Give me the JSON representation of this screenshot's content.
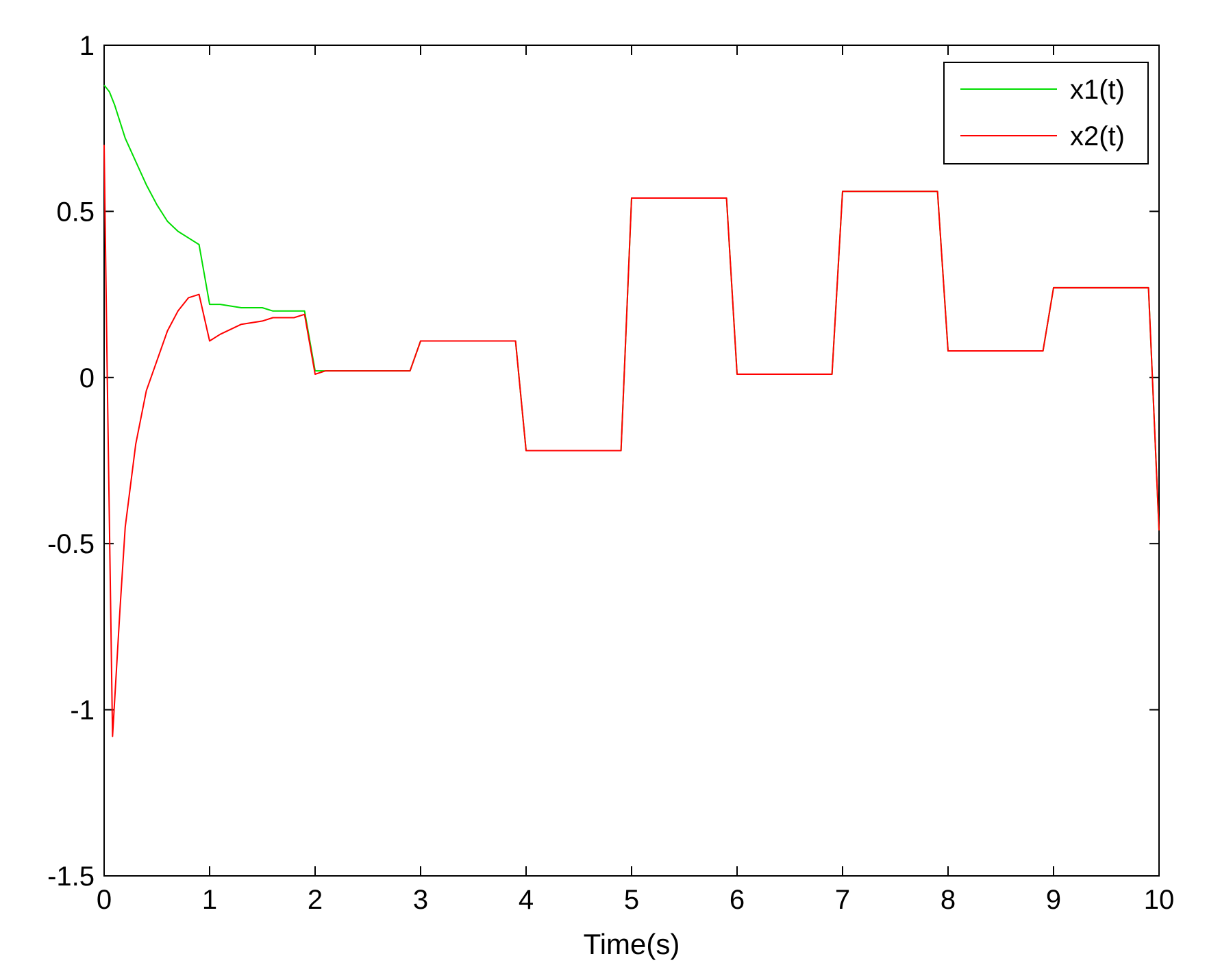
{
  "chart_data": {
    "type": "line",
    "title": "",
    "xlabel": "Time(s)",
    "ylabel": "",
    "xlim": [
      0,
      10
    ],
    "ylim": [
      -1.5,
      1
    ],
    "xticks": [
      0,
      1,
      2,
      3,
      4,
      5,
      6,
      7,
      8,
      9,
      10
    ],
    "xtick_labels": [
      "0",
      "1",
      "2",
      "3",
      "4",
      "5",
      "6",
      "7",
      "8",
      "9",
      "10"
    ],
    "yticks": [
      -1.5,
      -1,
      -0.5,
      0,
      0.5,
      1
    ],
    "ytick_labels": [
      "-1.5",
      "-1",
      "-0.5",
      "0",
      "0.5",
      "1"
    ],
    "grid": false,
    "legend": "top-right",
    "series": [
      {
        "name": "x1(t)",
        "color": "#00dd00",
        "x": [
          0,
          0.05,
          0.1,
          0.2,
          0.3,
          0.4,
          0.5,
          0.6,
          0.7,
          0.8,
          0.9,
          1.0,
          1.1,
          1.3,
          1.5,
          1.6,
          1.8,
          1.9,
          2.0,
          2.1,
          2.2,
          2.9,
          3.0,
          3.9,
          4.0,
          4.9,
          5.0,
          5.9,
          6.0,
          6.9,
          7.0,
          7.9,
          8.0,
          8.9,
          9.0,
          9.9,
          10.0
        ],
        "y": [
          0.88,
          0.86,
          0.82,
          0.72,
          0.65,
          0.58,
          0.52,
          0.47,
          0.44,
          0.42,
          0.4,
          0.22,
          0.22,
          0.21,
          0.21,
          0.2,
          0.2,
          0.2,
          0.02,
          0.02,
          0.02,
          0.02,
          0.11,
          0.11,
          -0.22,
          -0.22,
          0.54,
          0.54,
          0.01,
          0.01,
          0.56,
          0.56,
          0.08,
          0.08,
          0.27,
          0.27,
          -0.46
        ]
      },
      {
        "name": "x2(t)",
        "color": "#ff0000",
        "x": [
          0,
          0.03,
          0.08,
          0.15,
          0.2,
          0.3,
          0.4,
          0.5,
          0.6,
          0.7,
          0.8,
          0.9,
          1.0,
          1.1,
          1.3,
          1.5,
          1.6,
          1.8,
          1.9,
          2.0,
          2.1,
          2.2,
          2.9,
          3.0,
          3.9,
          4.0,
          4.9,
          5.0,
          5.9,
          6.0,
          6.9,
          7.0,
          7.9,
          8.0,
          8.9,
          9.0,
          9.9,
          10.0
        ],
        "y": [
          0.7,
          0.0,
          -1.08,
          -0.7,
          -0.45,
          -0.2,
          -0.04,
          0.05,
          0.14,
          0.2,
          0.24,
          0.25,
          0.11,
          0.13,
          0.16,
          0.17,
          0.18,
          0.18,
          0.19,
          0.01,
          0.02,
          0.02,
          0.02,
          0.11,
          0.11,
          -0.22,
          -0.22,
          0.54,
          0.54,
          0.01,
          0.01,
          0.56,
          0.56,
          0.08,
          0.08,
          0.27,
          0.27,
          -0.46
        ]
      }
    ]
  }
}
